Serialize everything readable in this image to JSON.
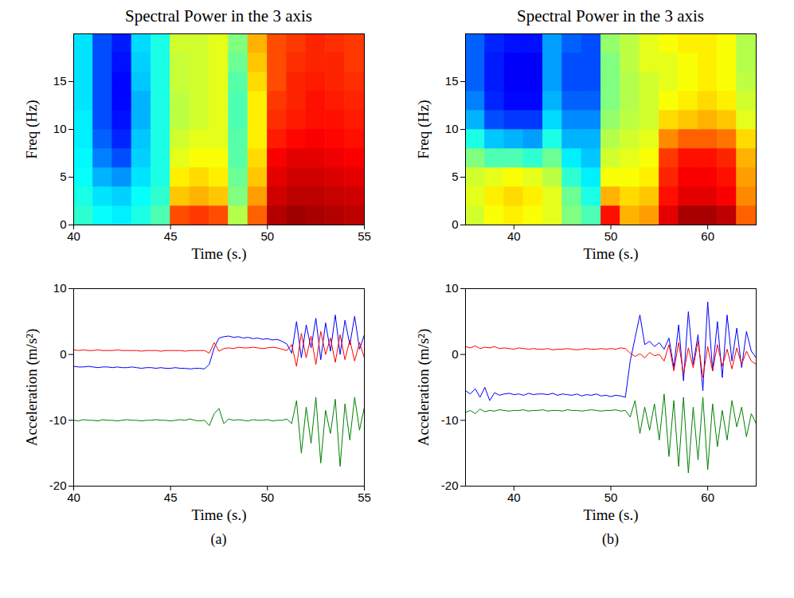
{
  "chart_data": [
    {
      "type": "heatmap",
      "title": "Spectral Power in the 3 axis",
      "xlabel": "Time (s.)",
      "ylabel": "Freq (Hz)",
      "xlim": [
        40,
        55
      ],
      "xticks": [
        40,
        45,
        50,
        55
      ],
      "ylim": [
        0,
        20
      ],
      "yticks": [
        0,
        5,
        10,
        15
      ],
      "zlim": [
        0,
        1
      ],
      "x_bins": [
        40,
        41,
        42,
        43,
        44,
        45,
        46,
        47,
        48,
        49,
        50,
        51,
        52,
        53,
        54,
        55
      ],
      "y_bins": [
        0,
        2,
        4,
        6,
        8,
        10,
        12,
        14,
        16,
        18,
        20
      ],
      "cells": [
        [
          0.42,
          0.38,
          0.36,
          0.4,
          0.45,
          0.8,
          0.82,
          0.8,
          0.55,
          0.78,
          0.95,
          0.97,
          0.96,
          0.95,
          0.94
        ],
        [
          0.4,
          0.35,
          0.33,
          0.38,
          0.42,
          0.68,
          0.7,
          0.68,
          0.5,
          0.72,
          0.92,
          0.94,
          0.94,
          0.93,
          0.92
        ],
        [
          0.38,
          0.3,
          0.27,
          0.35,
          0.4,
          0.64,
          0.66,
          0.64,
          0.48,
          0.68,
          0.9,
          0.92,
          0.92,
          0.91,
          0.9
        ],
        [
          0.37,
          0.25,
          0.2,
          0.33,
          0.4,
          0.6,
          0.62,
          0.62,
          0.46,
          0.66,
          0.88,
          0.9,
          0.9,
          0.89,
          0.88
        ],
        [
          0.36,
          0.22,
          0.16,
          0.32,
          0.4,
          0.58,
          0.6,
          0.6,
          0.46,
          0.64,
          0.85,
          0.87,
          0.88,
          0.87,
          0.86
        ],
        [
          0.36,
          0.2,
          0.14,
          0.3,
          0.4,
          0.56,
          0.58,
          0.6,
          0.45,
          0.64,
          0.83,
          0.85,
          0.86,
          0.86,
          0.85
        ],
        [
          0.35,
          0.2,
          0.13,
          0.3,
          0.4,
          0.56,
          0.58,
          0.6,
          0.45,
          0.64,
          0.82,
          0.84,
          0.86,
          0.85,
          0.84
        ],
        [
          0.35,
          0.2,
          0.13,
          0.32,
          0.4,
          0.57,
          0.58,
          0.6,
          0.46,
          0.66,
          0.8,
          0.84,
          0.85,
          0.84,
          0.83
        ],
        [
          0.35,
          0.2,
          0.14,
          0.33,
          0.4,
          0.57,
          0.58,
          0.6,
          0.48,
          0.68,
          0.8,
          0.83,
          0.84,
          0.84,
          0.82
        ],
        [
          0.35,
          0.2,
          0.15,
          0.34,
          0.4,
          0.58,
          0.58,
          0.6,
          0.5,
          0.7,
          0.8,
          0.82,
          0.84,
          0.83,
          0.82
        ]
      ]
    },
    {
      "type": "line",
      "xlabel": "Time (s.)",
      "ylabel": "Acceleration (m/s²)",
      "caption": "(a)",
      "xlim": [
        40,
        55
      ],
      "xticks": [
        40,
        45,
        50,
        55
      ],
      "ylim": [
        -20,
        10
      ],
      "yticks": [
        -20,
        -10,
        0,
        10
      ],
      "x": [
        40,
        40.25,
        40.5,
        40.75,
        41,
        41.25,
        41.5,
        41.75,
        42,
        42.25,
        42.5,
        42.75,
        43,
        43.25,
        43.5,
        43.75,
        44,
        44.25,
        44.5,
        44.75,
        45,
        45.25,
        45.5,
        45.75,
        46,
        46.25,
        46.5,
        46.75,
        47,
        47.25,
        47.5,
        47.75,
        48,
        48.25,
        48.5,
        48.75,
        49,
        49.25,
        49.5,
        49.75,
        50,
        50.25,
        50.5,
        50.75,
        51,
        51.25,
        51.5,
        51.75,
        52,
        52.25,
        52.5,
        52.75,
        53,
        53.25,
        53.5,
        53.75,
        54,
        54.25,
        54.5,
        54.75,
        55
      ],
      "series": [
        {
          "color": "#0000ff",
          "values": [
            -1.8,
            -1.9,
            -1.9,
            -1.8,
            -1.9,
            -2.0,
            -1.9,
            -1.9,
            -2.0,
            -1.9,
            -2.0,
            -2.0,
            -1.9,
            -2.0,
            -2.1,
            -2.0,
            -2.0,
            -2.1,
            -2.0,
            -2.1,
            -2.1,
            -2.0,
            -2.1,
            -2.1,
            -2.2,
            -2.1,
            -2.1,
            -2.2,
            -1.5,
            1.0,
            2.5,
            2.7,
            2.8,
            2.6,
            2.7,
            2.5,
            2.6,
            2.4,
            2.5,
            2.3,
            2.4,
            2.2,
            2.3,
            2.0,
            1.6,
            0.2,
            5.0,
            -0.5,
            4.5,
            1.0,
            5.5,
            -0.8,
            4.8,
            0.5,
            6.0,
            0.0,
            5.2,
            1.5,
            5.8,
            0.8,
            3.0
          ]
        },
        {
          "color": "#008000",
          "values": [
            -10.0,
            -10.1,
            -9.9,
            -10.0,
            -10.0,
            -10.1,
            -9.9,
            -10.0,
            -10.0,
            -10.1,
            -10.0,
            -9.9,
            -10.0,
            -10.0,
            -10.1,
            -10.0,
            -10.0,
            -9.9,
            -10.0,
            -10.0,
            -10.1,
            -10.0,
            -9.9,
            -10.0,
            -9.8,
            -10.0,
            -10.1,
            -10.0,
            -10.8,
            -9.0,
            -8.2,
            -10.5,
            -9.8,
            -10.0,
            -9.9,
            -10.0,
            -10.1,
            -9.9,
            -10.0,
            -10.0,
            -9.9,
            -10.1,
            -10.0,
            -10.0,
            -9.8,
            -10.5,
            -7.0,
            -15.0,
            -8.0,
            -13.5,
            -6.5,
            -16.5,
            -8.5,
            -12.0,
            -6.8,
            -17.0,
            -7.5,
            -13.0,
            -6.5,
            -11.5,
            -8.0
          ]
        },
        {
          "color": "#ff0000",
          "values": [
            0.7,
            0.6,
            0.7,
            0.6,
            0.6,
            0.7,
            0.6,
            0.6,
            0.6,
            0.7,
            0.6,
            0.6,
            0.6,
            0.6,
            0.5,
            0.6,
            0.6,
            0.6,
            0.5,
            0.6,
            0.6,
            0.6,
            0.6,
            0.5,
            0.6,
            0.6,
            0.6,
            0.6,
            0.2,
            1.8,
            0.5,
            0.9,
            1.0,
            0.9,
            1.1,
            1.0,
            1.0,
            1.1,
            1.0,
            0.9,
            1.0,
            1.1,
            1.0,
            0.8,
            0.6,
            1.5,
            -1.8,
            3.2,
            -0.5,
            2.8,
            -1.5,
            3.5,
            0.0,
            2.5,
            -1.2,
            3.0,
            -0.8,
            2.2,
            -1.0,
            1.8,
            -0.5
          ]
        }
      ]
    },
    {
      "type": "heatmap",
      "title": "Spectral Power in the 3 axis",
      "xlabel": "Time (s.)",
      "ylabel": "Freq (Hz)",
      "xlim": [
        35,
        65
      ],
      "xticks": [
        40,
        50,
        60
      ],
      "ylim": [
        0,
        20
      ],
      "yticks": [
        0,
        5,
        10,
        15
      ],
      "zlim": [
        0,
        1
      ],
      "x_bins": [
        35,
        37,
        39,
        41,
        43,
        45,
        47,
        49,
        51,
        53,
        55,
        57,
        59,
        61,
        63,
        65
      ],
      "y_bins": [
        0,
        2,
        4,
        6,
        8,
        10,
        12,
        14,
        16,
        18,
        20
      ],
      "cells": [
        [
          0.58,
          0.62,
          0.64,
          0.62,
          0.6,
          0.5,
          0.45,
          0.86,
          0.7,
          0.72,
          0.9,
          0.96,
          0.96,
          0.94,
          0.78
        ],
        [
          0.6,
          0.64,
          0.66,
          0.64,
          0.6,
          0.48,
          0.4,
          0.7,
          0.66,
          0.68,
          0.86,
          0.9,
          0.9,
          0.88,
          0.74
        ],
        [
          0.58,
          0.6,
          0.62,
          0.6,
          0.56,
          0.42,
          0.36,
          0.62,
          0.62,
          0.64,
          0.84,
          0.88,
          0.88,
          0.86,
          0.72
        ],
        [
          0.5,
          0.45,
          0.45,
          0.42,
          0.48,
          0.36,
          0.32,
          0.58,
          0.6,
          0.62,
          0.82,
          0.86,
          0.86,
          0.84,
          0.7
        ],
        [
          0.4,
          0.32,
          0.3,
          0.28,
          0.4,
          0.3,
          0.3,
          0.55,
          0.58,
          0.6,
          0.74,
          0.78,
          0.78,
          0.76,
          0.66
        ],
        [
          0.3,
          0.2,
          0.18,
          0.18,
          0.34,
          0.26,
          0.26,
          0.52,
          0.56,
          0.58,
          0.66,
          0.68,
          0.7,
          0.68,
          0.6
        ],
        [
          0.25,
          0.16,
          0.13,
          0.13,
          0.3,
          0.22,
          0.22,
          0.5,
          0.55,
          0.58,
          0.62,
          0.64,
          0.66,
          0.64,
          0.58
        ],
        [
          0.22,
          0.15,
          0.12,
          0.12,
          0.28,
          0.2,
          0.2,
          0.5,
          0.55,
          0.58,
          0.6,
          0.62,
          0.64,
          0.62,
          0.56
        ],
        [
          0.22,
          0.15,
          0.12,
          0.12,
          0.28,
          0.2,
          0.2,
          0.5,
          0.56,
          0.6,
          0.6,
          0.62,
          0.64,
          0.62,
          0.55
        ],
        [
          0.22,
          0.16,
          0.14,
          0.14,
          0.28,
          0.22,
          0.2,
          0.52,
          0.56,
          0.6,
          0.62,
          0.64,
          0.64,
          0.62,
          0.55
        ]
      ]
    },
    {
      "type": "line",
      "xlabel": "Time (s.)",
      "ylabel": "Acceleration (m/s²)",
      "caption": "(b)",
      "xlim": [
        35,
        65
      ],
      "xticks": [
        40,
        50,
        60
      ],
      "ylim": [
        -20,
        10
      ],
      "yticks": [
        -20,
        -10,
        0,
        10
      ],
      "x": [
        35,
        35.5,
        36,
        36.5,
        37,
        37.5,
        38,
        38.5,
        39,
        39.5,
        40,
        40.5,
        41,
        41.5,
        42,
        42.5,
        43,
        43.5,
        44,
        44.5,
        45,
        45.5,
        46,
        46.5,
        47,
        47.5,
        48,
        48.5,
        49,
        49.5,
        50,
        50.5,
        51,
        51.5,
        52,
        52.5,
        53,
        53.5,
        54,
        54.5,
        55,
        55.5,
        56,
        56.5,
        57,
        57.5,
        58,
        58.5,
        59,
        59.5,
        60,
        60.5,
        61,
        61.5,
        62,
        62.5,
        63,
        63.5,
        64,
        64.5,
        65
      ],
      "series": [
        {
          "color": "#0000ff",
          "values": [
            -5.5,
            -6.0,
            -5.2,
            -6.5,
            -5.0,
            -7.0,
            -5.8,
            -6.2,
            -6.0,
            -5.9,
            -6.1,
            -6.0,
            -6.2,
            -5.9,
            -6.1,
            -6.0,
            -6.0,
            -6.1,
            -5.9,
            -6.2,
            -6.0,
            -6.1,
            -6.2,
            -6.0,
            -6.3,
            -6.1,
            -6.2,
            -6.0,
            -6.3,
            -6.2,
            -6.4,
            -6.2,
            -6.3,
            -6.5,
            -1.0,
            2.5,
            6.0,
            1.5,
            2.0,
            1.2,
            1.8,
            0.8,
            2.5,
            -2.0,
            4.5,
            -4.0,
            6.5,
            -1.5,
            3.0,
            -5.5,
            8.0,
            -2.5,
            5.0,
            -3.5,
            6.0,
            -1.0,
            4.0,
            -2.0,
            3.5,
            0.5,
            -0.5
          ]
        },
        {
          "color": "#008000",
          "values": [
            -8.8,
            -8.5,
            -9.0,
            -8.3,
            -8.7,
            -8.5,
            -8.6,
            -8.4,
            -8.5,
            -8.6,
            -8.5,
            -8.5,
            -8.4,
            -8.6,
            -8.5,
            -8.5,
            -8.4,
            -8.6,
            -8.5,
            -8.5,
            -8.6,
            -8.4,
            -8.5,
            -8.5,
            -8.6,
            -8.5,
            -8.4,
            -8.5,
            -8.6,
            -8.5,
            -8.5,
            -8.4,
            -8.6,
            -8.5,
            -9.5,
            -7.0,
            -12.0,
            -8.0,
            -11.5,
            -7.5,
            -13.0,
            -6.0,
            -15.5,
            -7.0,
            -17.0,
            -6.5,
            -18.0,
            -8.0,
            -16.0,
            -6.5,
            -17.5,
            -7.5,
            -14.0,
            -8.5,
            -13.0,
            -7.0,
            -11.0,
            -8.0,
            -12.5,
            -9.0,
            -10.5
          ]
        },
        {
          "color": "#ff0000",
          "values": [
            1.2,
            1.0,
            1.3,
            0.9,
            1.1,
            1.0,
            1.2,
            0.9,
            1.0,
            0.9,
            0.8,
            1.0,
            0.9,
            0.8,
            0.9,
            0.8,
            0.8,
            0.9,
            0.7,
            0.8,
            0.8,
            0.9,
            0.8,
            0.7,
            0.8,
            0.9,
            0.8,
            0.8,
            0.9,
            0.8,
            0.9,
            0.8,
            1.0,
            0.9,
            0.2,
            -0.3,
            0.1,
            -0.5,
            0.3,
            -0.2,
            0.0,
            -1.0,
            1.5,
            -2.5,
            1.8,
            -3.0,
            1.0,
            -2.0,
            2.0,
            -3.5,
            1.2,
            -2.5,
            1.5,
            -1.8,
            0.8,
            -2.2,
            1.0,
            -1.5,
            0.5,
            -1.0,
            -1.5
          ]
        }
      ]
    }
  ]
}
